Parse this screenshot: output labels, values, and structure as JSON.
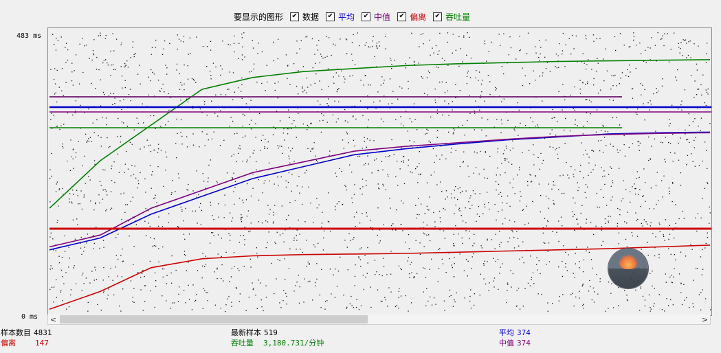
{
  "legend": {
    "title": "要显示的图形",
    "items": [
      {
        "key": "data",
        "label": "数据",
        "checked": true,
        "color": "#000000"
      },
      {
        "key": "avg",
        "label": "平均",
        "checked": true,
        "color": "#0000cc"
      },
      {
        "key": "median",
        "label": "中值",
        "checked": true,
        "color": "#800080"
      },
      {
        "key": "dev",
        "label": "偏离",
        "checked": true,
        "color": "#cc0000"
      },
      {
        "key": "tp",
        "label": "吞吐量",
        "checked": true,
        "color": "#008000"
      }
    ]
  },
  "axis": {
    "y_max_label": "483 ms",
    "y_min_label": "0 ms"
  },
  "stats": {
    "samples_label": "样本数目",
    "samples_value": "4831",
    "latest_label": "最新样本",
    "latest_value": "519",
    "avg_label": "平均",
    "avg_value": "374",
    "dev_label": "偏离",
    "dev_value": "147",
    "tp_label": "吞吐量",
    "tp_value": "3,180.731/分钟",
    "median_label": "中值",
    "median_value": "374"
  },
  "scroll": {
    "left_icon": "chevron-left-icon",
    "right_icon": "chevron-right-icon"
  },
  "chart_data": {
    "type": "scatter",
    "title": "",
    "xlabel": "",
    "ylabel": "",
    "ylim": [
      0,
      483
    ],
    "series": [
      {
        "name": "平均",
        "color": "#0000cc",
        "y": [
          110,
          130,
          170,
          200,
          230,
          250,
          270,
          280,
          288,
          295,
          300,
          305,
          307,
          308
        ]
      },
      {
        "name": "中值",
        "color": "#800080",
        "y": [
          115,
          135,
          180,
          210,
          240,
          258,
          276,
          284,
          290,
          296,
          301,
          304,
          306,
          307
        ]
      },
      {
        "name": "偏离",
        "color": "#cc0000",
        "y": [
          10,
          40,
          80,
          95,
          100,
          102,
          103,
          104,
          106,
          108,
          110,
          112,
          115,
          118
        ]
      },
      {
        "name": "吞吐量",
        "color": "#008000",
        "y": [
          180,
          260,
          320,
          380,
          400,
          410,
          415,
          420,
          423,
          425,
          427,
          428,
          429,
          430
        ]
      }
    ]
  }
}
